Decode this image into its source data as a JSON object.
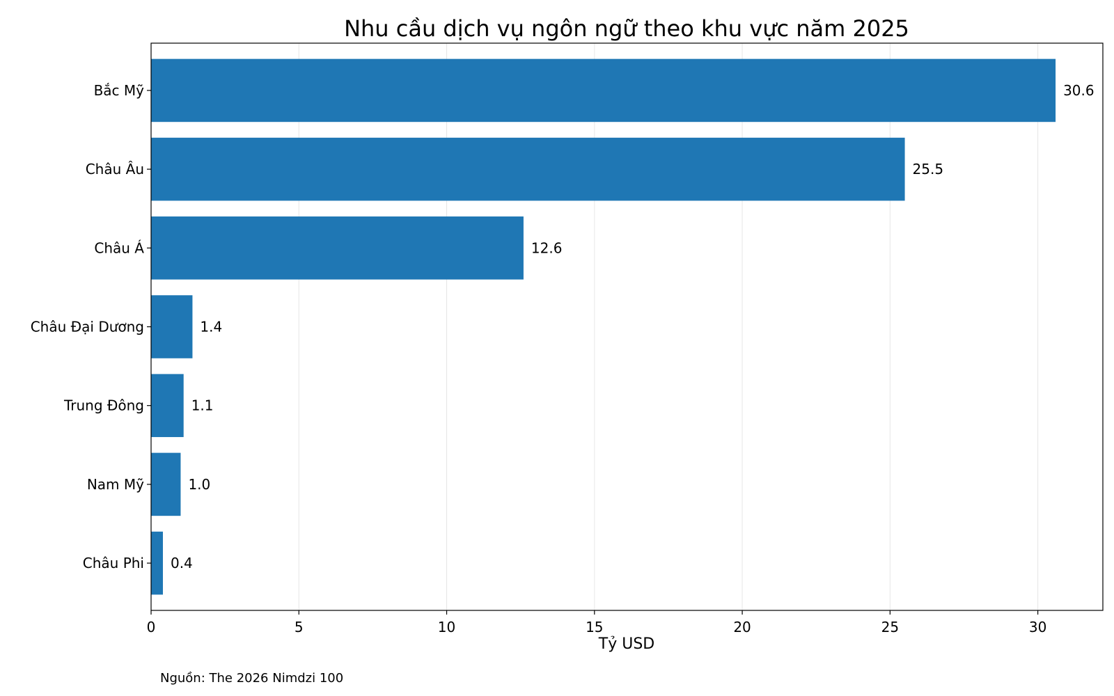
{
  "chart_data": {
    "type": "bar",
    "orientation": "horizontal",
    "title": "Nhu cầu dịch vụ ngôn ngữ theo khu vực năm 2025",
    "xlabel": "Tỷ USD",
    "ylabel": "",
    "categories": [
      "Bắc Mỹ",
      "Châu Âu",
      "Châu Á",
      "Châu Đại Dương",
      "Trung Đông",
      "Nam Mỹ",
      "Châu Phi"
    ],
    "values": [
      30.6,
      25.5,
      12.6,
      1.4,
      1.1,
      1.0,
      0.4
    ],
    "value_labels": [
      "30.6",
      "25.5",
      "12.6",
      "1.4",
      "1.1",
      "1.0",
      "0.4"
    ],
    "xlim": [
      0,
      32.2
    ],
    "x_ticks": [
      0,
      5,
      10,
      15,
      20,
      25,
      30
    ],
    "grid": "vertical",
    "legend": "none",
    "bar_color": "#1f77b4",
    "grid_color": "#e6e6e6"
  },
  "source_note": "Nguồn: The 2026 Nimdzi 100"
}
